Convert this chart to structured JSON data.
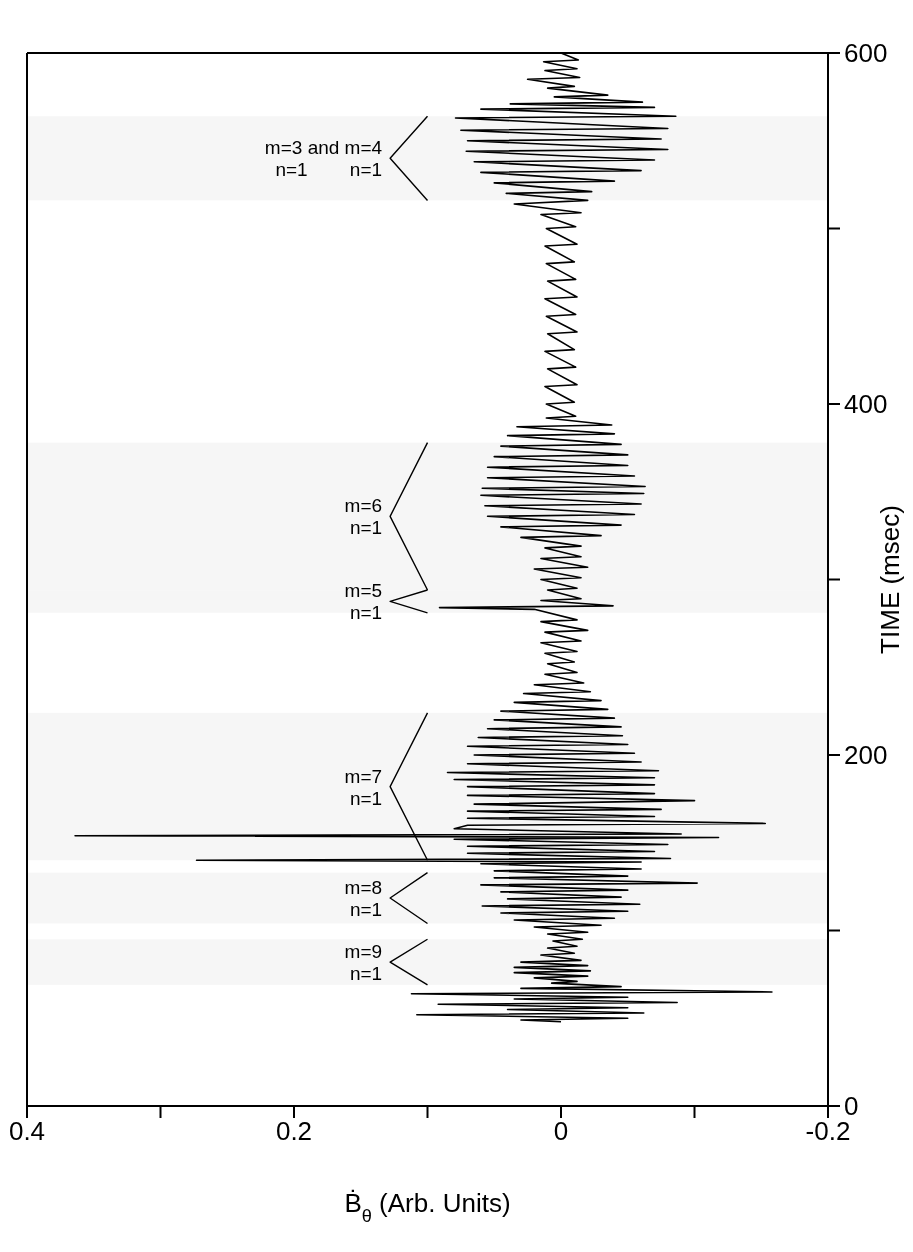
{
  "chart_data": {
    "type": "line",
    "xlabel": "Ḃ$_{θ}$ (Arb. Units)",
    "ylabel": "TIME (msec)",
    "xlim": [
      0.4,
      -0.2
    ],
    "xticks": [
      0.4,
      {
        "value": 0.3,
        "label": null
      },
      0.2,
      {
        "value": 0.1,
        "label": null
      },
      0,
      {
        "value": -0.1,
        "label": null
      },
      -0.2
    ],
    "ylim": [
      0,
      600
    ],
    "yticks": [
      0,
      {
        "value": 100,
        "label": null
      },
      200,
      {
        "value": 300,
        "label": null
      },
      400,
      {
        "value": 500,
        "label": null
      },
      600
    ],
    "grid": false,
    "line_style": "solid",
    "bands": [
      {
        "axis": "y",
        "from": 69,
        "to": 95,
        "label": "m=9\nn=1"
      },
      {
        "axis": "y",
        "from": 104,
        "to": 133,
        "label": "m=8\nn=1"
      },
      {
        "axis": "y",
        "from": 140,
        "to": 224,
        "label": "m=7\nn=1"
      },
      {
        "axis": "y",
        "from": 281,
        "to": 294,
        "label": "m=5\nn=1"
      },
      {
        "axis": "y",
        "from": 294,
        "to": 378,
        "label": "m=6\nn=1"
      },
      {
        "axis": "y",
        "from": 516,
        "to": 564,
        "label": "m=3 and m=4\nn=1        n=1"
      }
    ],
    "series": [
      {
        "color": "#000000",
        "values": [
          48,
          49,
          50,
          52,
          53,
          55,
          56,
          58,
          59,
          61,
          62,
          64,
          65,
          67,
          68,
          70,
          71,
          73,
          74,
          76,
          77,
          79,
          80,
          82,
          83,
          86,
          87,
          90,
          91,
          94,
          95,
          98,
          99,
          102,
          103,
          106,
          107,
          110,
          111,
          114,
          115,
          118,
          119,
          122,
          123,
          126,
          127,
          130,
          131,
          134,
          135,
          138,
          139,
          140,
          141,
          144,
          145,
          148,
          149,
          152,
          153,
          154,
          155,
          158,
          160,
          161,
          164,
          165,
          168,
          169,
          172,
          174,
          177,
          178,
          182,
          183,
          186,
          187,
          190,
          191,
          195,
          196,
          200,
          201,
          205,
          206,
          210,
          211,
          215,
          216,
          220,
          221,
          225,
          226,
          230,
          231,
          235,
          236,
          240,
          241,
          246,
          247,
          252,
          253,
          258,
          259,
          264,
          265,
          270,
          271,
          276,
          277,
          283,
          284,
          285,
          288,
          289,
          294,
          295,
          300,
          301,
          306,
          307,
          312,
          313,
          318,
          319,
          324,
          325,
          330,
          331,
          336,
          337,
          342,
          343,
          348,
          349,
          352,
          353,
          358,
          359,
          364,
          365,
          370,
          371,
          376,
          377,
          382,
          383,
          387,
          388,
          392,
          393,
          400,
          401,
          410,
          411,
          420,
          421,
          430,
          431,
          440,
          441,
          450,
          451,
          460,
          461,
          470,
          471,
          480,
          481,
          490,
          491,
          500,
          501,
          508,
          509,
          514,
          516,
          520,
          521,
          526,
          527,
          532,
          533,
          538,
          539,
          544,
          545,
          550,
          551,
          556,
          557,
          563,
          564,
          568,
          569,
          571,
          572,
          575,
          576,
          580,
          581,
          585,
          586,
          590,
          591,
          595,
          596,
          600
        ],
        "x": [
          0,
          0.03,
          -0.05,
          0.108,
          -0.062,
          0.04,
          -0.05,
          0.092,
          -0.087,
          0.035,
          -0.05,
          0.112,
          -0.158,
          0.03,
          -0.045,
          0.007,
          -0.012,
          0.02,
          -0.02,
          0.035,
          -0.022,
          0.035,
          -0.02,
          0.03,
          -0.015,
          0.015,
          -0.01,
          0.01,
          -0.012,
          0.006,
          -0.016,
          0.01,
          -0.02,
          0.02,
          -0.03,
          0.035,
          -0.04,
          0.045,
          -0.05,
          0.059,
          -0.059,
          0.04,
          -0.045,
          0.045,
          -0.05,
          0.06,
          -0.102,
          0.05,
          -0.05,
          0.05,
          -0.06,
          0.06,
          -0.06,
          0.273,
          -0.082,
          0.07,
          -0.07,
          0.07,
          -0.08,
          0.08,
          -0.118,
          0.364,
          -0.09,
          0.08,
          0.07,
          -0.153,
          0.07,
          -0.07,
          0.07,
          -0.075,
          0.065,
          -0.1,
          0.07,
          -0.07,
          0.07,
          -0.07,
          0.08,
          -0.07,
          0.085,
          -0.073,
          0.07,
          -0.06,
          0.065,
          -0.055,
          0.07,
          -0.05,
          0.062,
          -0.046,
          0.055,
          -0.045,
          0.05,
          -0.04,
          0.045,
          -0.035,
          0.035,
          -0.03,
          0.028,
          -0.022,
          0.02,
          -0.017,
          0.012,
          -0.012,
          0.01,
          -0.01,
          0.012,
          -0.012,
          0.015,
          -0.015,
          0.012,
          -0.02,
          0.015,
          -0.012,
          0.02,
          0.091,
          -0.039,
          0.015,
          -0.015,
          0.01,
          -0.012,
          0.015,
          -0.015,
          0.02,
          -0.02,
          0.015,
          -0.015,
          0.012,
          -0.015,
          0.03,
          -0.03,
          0.045,
          -0.045,
          0.055,
          -0.055,
          0.057,
          -0.06,
          0.06,
          -0.062,
          0.059,
          -0.063,
          0.055,
          -0.055,
          0.055,
          -0.05,
          0.05,
          -0.05,
          0.045,
          -0.045,
          0.04,
          -0.04,
          0.033,
          -0.038,
          0.011,
          -0.011,
          0.011,
          -0.01,
          0.012,
          -0.012,
          0.01,
          -0.011,
          0.012,
          -0.01,
          0.01,
          -0.012,
          0.011,
          -0.011,
          0.012,
          -0.012,
          0.01,
          -0.011,
          0.011,
          -0.01,
          0.012,
          -0.012,
          0.011,
          -0.011,
          0.015,
          -0.015,
          0.035,
          -0.02,
          0.041,
          -0.023,
          0.05,
          -0.04,
          0.06,
          -0.06,
          0.065,
          -0.07,
          0.071,
          -0.08,
          0.07,
          -0.075,
          0.075,
          -0.08,
          0.079,
          -0.086,
          0.06,
          -0.07,
          0.038,
          -0.061,
          0.005,
          -0.035,
          0.01,
          -0.01,
          0.025,
          -0.014,
          0.012,
          -0.012,
          0.013,
          -0.013,
          0
        ]
      }
    ]
  }
}
